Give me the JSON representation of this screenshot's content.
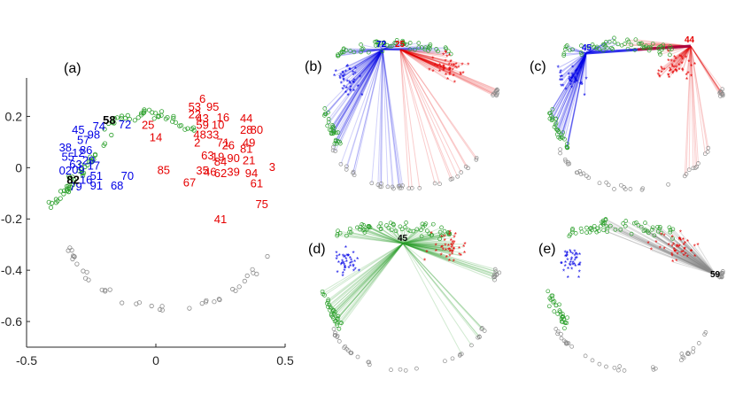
{
  "colors": {
    "blue": "#0000e6",
    "red": "#e60000",
    "green": "#2ca02c",
    "gray": "#8c8c8c",
    "black": "#000000",
    "axis": "#262626"
  },
  "chart_data": [
    {
      "type": "scatter",
      "panel_label": "(a)",
      "xlim": [
        -0.5,
        0.5
      ],
      "ylim": [
        -0.7,
        0.35
      ],
      "x_ticks": [
        {
          "value": -0.5,
          "label": "-0.5"
        },
        {
          "value": 0,
          "label": "0"
        },
        {
          "value": 0.5,
          "label": "0.5"
        }
      ],
      "y_ticks": [
        {
          "value": 0.2,
          "label": "0.2"
        },
        {
          "value": 0,
          "label": "0"
        },
        {
          "value": -0.2,
          "label": "-0.2"
        },
        {
          "value": -0.4,
          "label": "-0.4"
        },
        {
          "value": -0.6,
          "label": "-0.6"
        }
      ],
      "labeled_points": {
        "blue": [
          {
            "t": "45",
            "x": -0.3,
            "y": 0.15
          },
          {
            "t": "74",
            "x": -0.22,
            "y": 0.163
          },
          {
            "t": "72",
            "x": -0.12,
            "y": 0.17
          },
          {
            "t": "98",
            "x": -0.24,
            "y": 0.13
          },
          {
            "t": "57",
            "x": -0.28,
            "y": 0.11
          },
          {
            "t": "38",
            "x": -0.35,
            "y": 0.08
          },
          {
            "t": "86",
            "x": -0.27,
            "y": 0.07
          },
          {
            "t": "12",
            "x": -0.3,
            "y": 0.06
          },
          {
            "t": "55",
            "x": -0.34,
            "y": 0.045
          },
          {
            "t": "29",
            "x": -0.26,
            "y": 0.03
          },
          {
            "t": "63",
            "x": -0.31,
            "y": 0.015
          },
          {
            "t": "17",
            "x": -0.24,
            "y": 0.01
          },
          {
            "t": "09",
            "x": -0.3,
            "y": -0.005
          },
          {
            "t": "02",
            "x": -0.35,
            "y": -0.01
          },
          {
            "t": "51",
            "x": -0.23,
            "y": -0.03
          },
          {
            "t": "70",
            "x": -0.11,
            "y": -0.03
          },
          {
            "t": "16",
            "x": -0.27,
            "y": -0.045
          },
          {
            "t": "79",
            "x": -0.31,
            "y": -0.072
          },
          {
            "t": "91",
            "x": -0.23,
            "y": -0.068
          },
          {
            "t": "68",
            "x": -0.15,
            "y": -0.068
          }
        ],
        "red": [
          {
            "t": "6",
            "x": 0.18,
            "y": 0.27
          },
          {
            "t": "53",
            "x": 0.15,
            "y": 0.24
          },
          {
            "t": "95",
            "x": 0.22,
            "y": 0.24
          },
          {
            "t": "22",
            "x": 0.15,
            "y": 0.21
          },
          {
            "t": "43",
            "x": 0.18,
            "y": 0.195
          },
          {
            "t": "16",
            "x": 0.26,
            "y": 0.198
          },
          {
            "t": "44",
            "x": 0.35,
            "y": 0.195
          },
          {
            "t": "25",
            "x": -0.03,
            "y": 0.168
          },
          {
            "t": "59",
            "x": 0.18,
            "y": 0.168
          },
          {
            "t": "10",
            "x": 0.24,
            "y": 0.168
          },
          {
            "t": "28",
            "x": 0.35,
            "y": 0.15
          },
          {
            "t": "80",
            "x": 0.39,
            "y": 0.15
          },
          {
            "t": "48",
            "x": 0.17,
            "y": 0.13
          },
          {
            "t": "33",
            "x": 0.22,
            "y": 0.13
          },
          {
            "t": "14",
            "x": 0.0,
            "y": 0.12
          },
          {
            "t": "2",
            "x": 0.16,
            "y": 0.1
          },
          {
            "t": "71",
            "x": 0.26,
            "y": 0.1
          },
          {
            "t": "49",
            "x": 0.36,
            "y": 0.1
          },
          {
            "t": "26",
            "x": 0.28,
            "y": 0.09
          },
          {
            "t": "81",
            "x": 0.35,
            "y": 0.075
          },
          {
            "t": "63",
            "x": 0.2,
            "y": 0.05
          },
          {
            "t": "19",
            "x": 0.24,
            "y": 0.045
          },
          {
            "t": "90",
            "x": 0.3,
            "y": 0.04
          },
          {
            "t": "21",
            "x": 0.36,
            "y": 0.03
          },
          {
            "t": "84",
            "x": 0.25,
            "y": 0.025
          },
          {
            "t": "85",
            "x": 0.03,
            "y": -0.008
          },
          {
            "t": "35",
            "x": 0.18,
            "y": -0.01
          },
          {
            "t": "46",
            "x": 0.21,
            "y": -0.015
          },
          {
            "t": "62",
            "x": 0.25,
            "y": -0.02
          },
          {
            "t": "39",
            "x": 0.3,
            "y": -0.015
          },
          {
            "t": "94",
            "x": 0.37,
            "y": -0.02
          },
          {
            "t": "3",
            "x": 0.45,
            "y": 0.005
          },
          {
            "t": "67",
            "x": 0.13,
            "y": -0.055
          },
          {
            "t": "61",
            "x": 0.39,
            "y": -0.06
          },
          {
            "t": "75",
            "x": 0.41,
            "y": -0.14
          },
          {
            "t": "41",
            "x": 0.25,
            "y": -0.2
          }
        ],
        "black": [
          {
            "t": "58",
            "x": -0.18,
            "y": 0.188
          },
          {
            "t": "82",
            "x": -0.32,
            "y": -0.045
          }
        ]
      }
    },
    {
      "type": "scatter",
      "panel_label": "(b)",
      "anchors": [
        {
          "t": "72",
          "color": "blue"
        },
        {
          "t": "25",
          "color": "red"
        }
      ]
    },
    {
      "type": "scatter",
      "panel_label": "(c)",
      "anchors": [
        {
          "t": "45",
          "color": "blue"
        },
        {
          "t": "44",
          "color": "red"
        }
      ]
    },
    {
      "type": "scatter",
      "panel_label": "(d)",
      "anchors": [
        {
          "t": "45",
          "color": "black"
        }
      ]
    },
    {
      "type": "scatter",
      "panel_label": "(e)",
      "anchors": [
        {
          "t": "59",
          "color": "black"
        }
      ]
    }
  ]
}
